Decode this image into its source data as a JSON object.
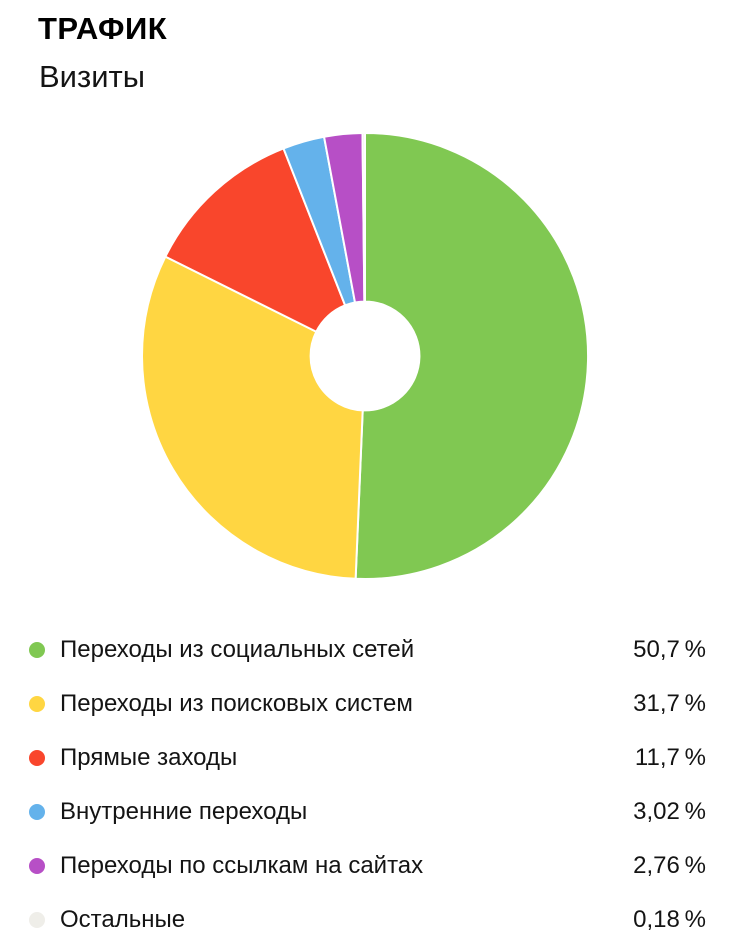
{
  "header": {
    "title": "ТРАФИК",
    "subtitle": "Визиты"
  },
  "chart_data": {
    "type": "pie",
    "variant": "donut",
    "title": "ТРАФИК",
    "subtitle": "Визиты",
    "metric": "Визиты",
    "unit": "%",
    "start_angle_deg": -90,
    "direction": "clockwise",
    "inner_radius_ratio": 0.244,
    "legend_position": "bottom",
    "categories": [
      "Переходы из социальных сетей",
      "Переходы из поисковых систем",
      "Прямые заходы",
      "Внутренние переходы",
      "Переходы по ссылкам на сайтах",
      "Остальные"
    ],
    "values": [
      50.7,
      31.7,
      11.7,
      3.02,
      2.76,
      0.18
    ],
    "display_values": [
      "50,7 %",
      "31,7 %",
      "11,7 %",
      "3,02 %",
      "2,76 %",
      "0,18 %"
    ],
    "colors": [
      "#80C852",
      "#FFD642",
      "#F9462C",
      "#64B2EB",
      "#B74FC6",
      "#EFEEE9"
    ],
    "separator_color": "#FFFFFF"
  }
}
